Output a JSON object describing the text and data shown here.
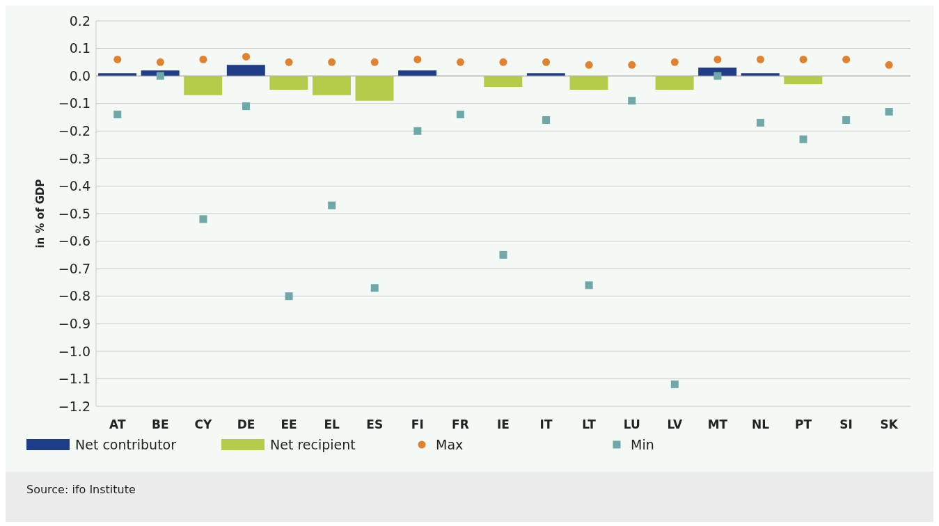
{
  "chart_data": {
    "type": "bar",
    "stacked": true,
    "ylabel": "in % of GDP",
    "categories": [
      "AT",
      "BE",
      "CY",
      "DE",
      "EE",
      "EL",
      "ES",
      "FI",
      "FR",
      "IE",
      "IT",
      "LT",
      "LU",
      "LV",
      "MT",
      "NL",
      "PT",
      "SI",
      "SK"
    ],
    "series": [
      {
        "name": "Net contributor",
        "color": "#1f3d87",
        "values": [
          0.01,
          0.02,
          null,
          0.04,
          null,
          null,
          null,
          0.02,
          null,
          null,
          0.01,
          null,
          null,
          null,
          0.03,
          0.01,
          null,
          null,
          null
        ]
      },
      {
        "name": "Net recipient",
        "color": "#b5cb4a",
        "values": [
          null,
          null,
          -0.07,
          null,
          -0.05,
          -0.07,
          -0.09,
          null,
          null,
          -0.04,
          null,
          -0.05,
          null,
          -0.05,
          null,
          null,
          -0.03,
          null,
          null
        ]
      },
      {
        "name": "Max",
        "type": "scatter",
        "marker": "circle",
        "color": "#e0822f",
        "values": [
          0.06,
          0.05,
          0.06,
          0.07,
          0.05,
          0.05,
          0.05,
          0.06,
          0.05,
          0.05,
          0.05,
          0.04,
          0.04,
          0.05,
          0.06,
          0.06,
          0.06,
          0.06,
          0.04
        ]
      },
      {
        "name": "Min",
        "type": "scatter",
        "marker": "square",
        "color": "#6fa8a8",
        "values": [
          -0.14,
          0,
          -0.52,
          -0.11,
          -0.8,
          -0.47,
          -0.77,
          -0.2,
          -0.14,
          -0.65,
          -0.16,
          -0.76,
          -0.09,
          -1.12,
          0,
          -0.17,
          -0.23,
          -0.16,
          -0.13
        ]
      }
    ],
    "ylim": [
      -1.2,
      0.2
    ],
    "yticks": [
      {
        "value": 0.2,
        "label": "0.2"
      },
      {
        "value": 0.1,
        "label": "0.1"
      },
      {
        "value": 0,
        "label": "0.0"
      },
      {
        "value": -0.1,
        "label": "−0.1"
      },
      {
        "value": -0.2,
        "label": "−0.2"
      },
      {
        "value": -0.3,
        "label": "−0.3"
      },
      {
        "value": -0.4,
        "label": "−0.4"
      },
      {
        "value": -0.5,
        "label": "−0.5"
      },
      {
        "value": -0.6,
        "label": "−0.6"
      },
      {
        "value": -0.7,
        "label": "−0.7"
      },
      {
        "value": -0.8,
        "label": "−0.8"
      },
      {
        "value": -0.9,
        "label": "−0.9"
      },
      {
        "value": -1,
        "label": "−1.0"
      },
      {
        "value": -1.1,
        "label": "−1.1"
      },
      {
        "value": -1.2,
        "label": "−1.2"
      }
    ],
    "grid": "y",
    "legend": "bottom",
    "annotations": [
      "Source: ifo Institute"
    ]
  }
}
